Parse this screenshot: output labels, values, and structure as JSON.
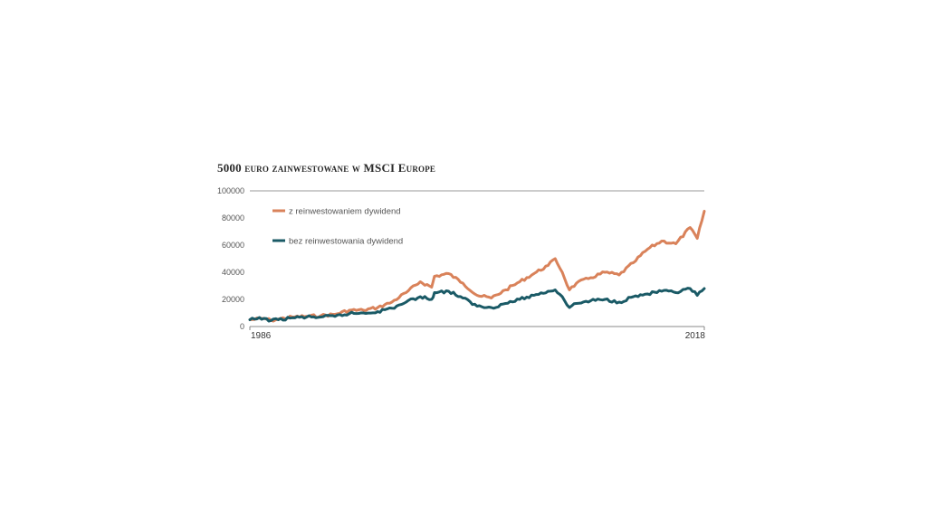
{
  "chart_data": {
    "type": "line",
    "title": "5000 euro zainwestowane w MSCI Europe",
    "xlabel": "",
    "ylabel": "",
    "x_ticks": [
      "1986",
      "2018"
    ],
    "xlim": [
      1986,
      2018
    ],
    "ylim": [
      0,
      100000
    ],
    "y_ticks": [
      "100000",
      "80000",
      "60000",
      "40000",
      "20000",
      "0"
    ],
    "y_tick_values": [
      100000,
      80000,
      60000,
      40000,
      20000,
      0
    ],
    "grid": false,
    "legend_placement": "top-left",
    "series": [
      {
        "name": "z reinwestowaniem dywidend",
        "color": "#d9825a",
        "x": [
          1986,
          1987,
          1987.5,
          1988,
          1989,
          1990,
          1991,
          1992,
          1993,
          1994,
          1995,
          1996,
          1997,
          1998,
          1998.8,
          1999,
          2000,
          2001,
          2002,
          2003,
          2004,
          2005,
          2006,
          2007,
          2007.5,
          2008,
          2008.5,
          2009,
          2010,
          2011,
          2012,
          2013,
          2014,
          2015,
          2016,
          2017,
          2017.5,
          2018
        ],
        "values": [
          5000,
          6000,
          4500,
          5500,
          7000,
          7500,
          8000,
          9000,
          12000,
          12000,
          14000,
          18000,
          25000,
          33000,
          29000,
          37000,
          39000,
          32000,
          23000,
          21000,
          27000,
          33000,
          39000,
          45000,
          50000,
          40000,
          27000,
          32000,
          36000,
          40000,
          38000,
          47000,
          57000,
          63000,
          61000,
          73000,
          65000,
          85000
        ]
      },
      {
        "name": "bez reinwestowania dywidend",
        "color": "#1a5a66",
        "x": [
          1986,
          1987,
          1987.5,
          1988,
          1989,
          1990,
          1991,
          1992,
          1993,
          1994,
          1995,
          1996,
          1997,
          1998,
          1998.8,
          1999,
          2000,
          2001,
          2002,
          2003,
          2004,
          2005,
          2006,
          2007,
          2007.5,
          2008,
          2008.5,
          2009,
          2010,
          2011,
          2012,
          2013,
          2014,
          2015,
          2016,
          2017,
          2017.5,
          2018
        ],
        "values": [
          5000,
          6000,
          4500,
          5000,
          6500,
          7000,
          7000,
          7500,
          9500,
          10000,
          11000,
          13500,
          18000,
          22000,
          20000,
          25000,
          26000,
          21000,
          15000,
          14000,
          17000,
          20000,
          23000,
          26000,
          27000,
          22000,
          14000,
          17000,
          19000,
          20000,
          18000,
          22000,
          24000,
          26000,
          25000,
          28000,
          23000,
          28000
        ]
      }
    ]
  }
}
